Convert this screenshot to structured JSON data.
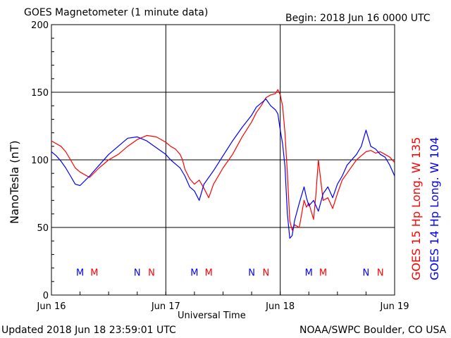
{
  "header": {
    "title": "GOES Magnetometer (1 minute data)",
    "begin": "Begin:  2018 Jun 16 0000 UTC"
  },
  "footer": {
    "updated": "Updated 2018 Jun 18 23:59:01 UTC",
    "credit": "NOAA/SWPC Boulder, CO USA"
  },
  "colors": {
    "goes15": "#ff0000",
    "goes14": "#0000ff",
    "grid": "#000000",
    "background": "#ffffff"
  },
  "chart_data": {
    "type": "line",
    "title": "GOES Magnetometer (1 minute data)",
    "xlabel": "Universal Time",
    "ylabel": "NanoTesla (nT)",
    "xlim": [
      0,
      72
    ],
    "ylim": [
      0,
      200
    ],
    "x_unit": "hours since 2018 Jun 16 0000 UTC",
    "x_ticks": [
      {
        "x": 0,
        "label": "Jun 16"
      },
      {
        "x": 24,
        "label": "Jun 17"
      },
      {
        "x": 48,
        "label": "Jun 18"
      },
      {
        "x": 72,
        "label": "Jun 19"
      }
    ],
    "y_ticks": [
      0,
      50,
      100,
      150,
      200
    ],
    "grid": true,
    "legend_position": "right",
    "series": [
      {
        "name": "GOES 15 Hp  Long. W 135",
        "color": "#ff0000",
        "x": [
          0,
          2,
          3,
          4,
          5,
          6,
          8,
          10,
          12,
          14,
          16,
          18,
          20,
          22,
          24,
          25,
          26,
          27,
          27.5,
          28,
          29,
          30,
          31,
          32,
          33,
          34,
          36,
          38,
          40,
          42,
          43,
          44,
          45,
          46,
          47,
          47.5,
          48,
          48.5,
          49,
          49.5,
          50,
          50.5,
          51,
          52,
          52.5,
          53,
          53.5,
          54,
          54.5,
          55,
          55.5,
          56,
          57,
          58,
          59,
          60,
          61,
          62,
          63,
          64,
          65,
          66,
          67,
          68,
          69,
          70,
          71,
          72
        ],
        "y": [
          114,
          110,
          106,
          100,
          94,
          91,
          87,
          94,
          100,
          104,
          110,
          115,
          118,
          117,
          113,
          110,
          108,
          104,
          100,
          93,
          86,
          82,
          85,
          79,
          72,
          82,
          94,
          104,
          117,
          128,
          135,
          140,
          146,
          148,
          149,
          152,
          148,
          140,
          120,
          90,
          55,
          48,
          52,
          50,
          60,
          70,
          65,
          68,
          62,
          56,
          75,
          100,
          70,
          72,
          64,
          75,
          85,
          90,
          95,
          100,
          103,
          106,
          107,
          105,
          106,
          104,
          102,
          98
        ]
      },
      {
        "name": "GOES 14 Hp  Long. W 104",
        "color": "#0000ff",
        "x": [
          0,
          1,
          2,
          3,
          4,
          5,
          6,
          8,
          10,
          12,
          14,
          16,
          18,
          20,
          22,
          24,
          25,
          26,
          27,
          28,
          29,
          30,
          31,
          32,
          34,
          36,
          38,
          40,
          42,
          43,
          44,
          45,
          46,
          47,
          47.5,
          48,
          48.5,
          49,
          49.5,
          50,
          50.5,
          51,
          52,
          53,
          53.5,
          54,
          55,
          56,
          57,
          58,
          59,
          60,
          61,
          62,
          63,
          64,
          65,
          66,
          67,
          68,
          69,
          70,
          71,
          72
        ],
        "y": [
          106,
          103,
          99,
          94,
          88,
          82,
          81,
          88,
          96,
          104,
          110,
          116,
          117,
          114,
          109,
          104,
          100,
          97,
          94,
          88,
          80,
          77,
          70,
          82,
          92,
          103,
          114,
          124,
          133,
          139,
          142,
          145,
          140,
          137,
          134,
          122,
          112,
          95,
          60,
          42,
          44,
          55,
          68,
          80,
          72,
          66,
          70,
          62,
          75,
          80,
          72,
          82,
          88,
          96,
          100,
          104,
          110,
          122,
          110,
          108,
          104,
          102,
          96,
          88
        ]
      }
    ],
    "annotations": [
      {
        "x": 6.0,
        "y": 17,
        "label": "M",
        "color": "#0000ff"
      },
      {
        "x": 9.0,
        "y": 17,
        "label": "M",
        "color": "#ff0000"
      },
      {
        "x": 18.0,
        "y": 17,
        "label": "N",
        "color": "#0000ff"
      },
      {
        "x": 21.0,
        "y": 17,
        "label": "N",
        "color": "#ff0000"
      },
      {
        "x": 30.0,
        "y": 17,
        "label": "M",
        "color": "#0000ff"
      },
      {
        "x": 33.0,
        "y": 17,
        "label": "M",
        "color": "#ff0000"
      },
      {
        "x": 42.0,
        "y": 17,
        "label": "N",
        "color": "#0000ff"
      },
      {
        "x": 45.0,
        "y": 17,
        "label": "N",
        "color": "#ff0000"
      },
      {
        "x": 54.0,
        "y": 17,
        "label": "M",
        "color": "#0000ff"
      },
      {
        "x": 57.0,
        "y": 17,
        "label": "M",
        "color": "#ff0000"
      },
      {
        "x": 66.0,
        "y": 17,
        "label": "N",
        "color": "#0000ff"
      },
      {
        "x": 69.0,
        "y": 17,
        "label": "N",
        "color": "#ff0000"
      }
    ]
  }
}
